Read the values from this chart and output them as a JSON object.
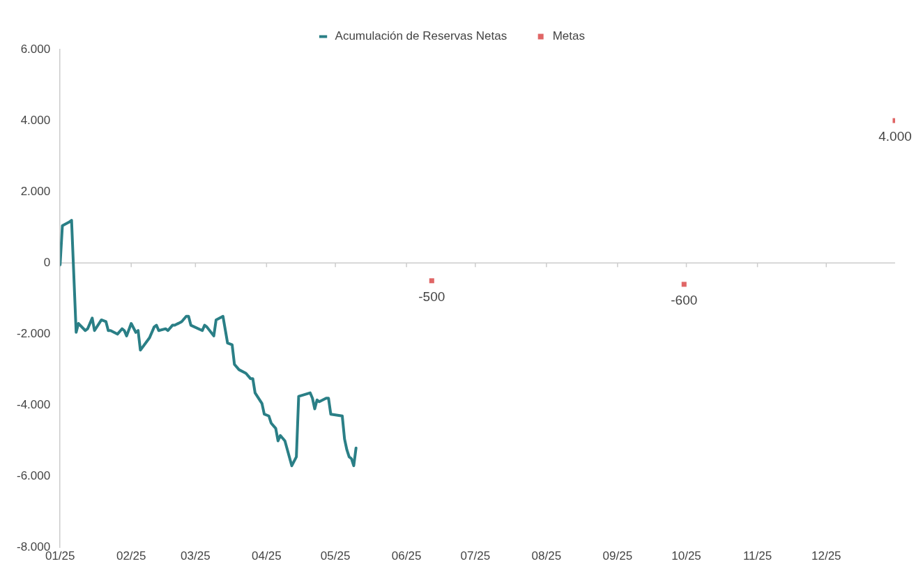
{
  "chart_data": {
    "type": "line",
    "legend": "top",
    "grid": false,
    "xlim": [
      "2025-01-01",
      "2025-12-31"
    ],
    "xticks": [
      {
        "value": "2025-01-01",
        "label": "01/25"
      },
      {
        "value": "2025-02-01",
        "label": "02/25"
      },
      {
        "value": "2025-03-01",
        "label": "03/25"
      },
      {
        "value": "2025-04-01",
        "label": "04/25"
      },
      {
        "value": "2025-05-01",
        "label": "05/25"
      },
      {
        "value": "2025-06-01",
        "label": "06/25"
      },
      {
        "value": "2025-07-01",
        "label": "07/25"
      },
      {
        "value": "2025-08-01",
        "label": "08/25"
      },
      {
        "value": "2025-09-01",
        "label": "09/25"
      },
      {
        "value": "2025-10-01",
        "label": "10/25"
      },
      {
        "value": "2025-11-01",
        "label": "11/25"
      },
      {
        "value": "2025-12-01",
        "label": "12/25"
      }
    ],
    "ylim": [
      -8000,
      6000
    ],
    "yticks": [
      {
        "value": -8000,
        "label": "-8.000"
      },
      {
        "value": -6000,
        "label": "-6.000"
      },
      {
        "value": -4000,
        "label": "-4.000"
      },
      {
        "value": -2000,
        "label": "-2.000"
      },
      {
        "value": 0,
        "label": "0"
      },
      {
        "value": 2000,
        "label": "2.000"
      },
      {
        "value": 4000,
        "label": "4.000"
      },
      {
        "value": 6000,
        "label": "6.000"
      }
    ],
    "ref_lines": [
      {
        "axis": "y",
        "value": 0,
        "color": "#cccccc"
      }
    ],
    "series": [
      {
        "name": "Acumulación de Reservas Netas",
        "color": "#2a7f86",
        "x": [
          "2025-01-01",
          "2025-01-02",
          "2025-01-05",
          "2025-01-06",
          "2025-01-08",
          "2025-01-09",
          "2025-01-12",
          "2025-01-13",
          "2025-01-15",
          "2025-01-16",
          "2025-01-19",
          "2025-01-21",
          "2025-01-22",
          "2025-01-23",
          "2025-01-26",
          "2025-01-28",
          "2025-01-29",
          "2025-01-30",
          "2025-02-01",
          "2025-02-03",
          "2025-02-04",
          "2025-02-05",
          "2025-02-09",
          "2025-02-11",
          "2025-02-12",
          "2025-02-13",
          "2025-02-16",
          "2025-02-17",
          "2025-02-19",
          "2025-02-20",
          "2025-02-23",
          "2025-02-25",
          "2025-02-26",
          "2025-02-27",
          "2025-03-04",
          "2025-03-05",
          "2025-03-06",
          "2025-03-09",
          "2025-03-10",
          "2025-03-13",
          "2025-03-15",
          "2025-03-17",
          "2025-03-18",
          "2025-03-20",
          "2025-03-23",
          "2025-03-25",
          "2025-03-26",
          "2025-03-27",
          "2025-03-30",
          "2025-03-31",
          "2025-04-02",
          "2025-04-03",
          "2025-04-05",
          "2025-04-06",
          "2025-04-07",
          "2025-04-09",
          "2025-04-12",
          "2025-04-14",
          "2025-04-15",
          "2025-04-20",
          "2025-04-21",
          "2025-04-22",
          "2025-04-23",
          "2025-04-24",
          "2025-04-27",
          "2025-04-28",
          "2025-04-29",
          "2025-05-04",
          "2025-05-05",
          "2025-05-06",
          "2025-05-07",
          "2025-05-08",
          "2025-05-09",
          "2025-05-10"
        ],
        "values": [
          -50,
          1050,
          1150,
          1200,
          -1950,
          -1700,
          -1900,
          -1850,
          -1550,
          -1900,
          -1600,
          -1650,
          -1900,
          -1900,
          -2000,
          -1850,
          -1900,
          -2050,
          -1700,
          -1950,
          -1900,
          -2450,
          -2100,
          -1800,
          -1750,
          -1900,
          -1850,
          -1900,
          -1750,
          -1750,
          -1650,
          -1500,
          -1500,
          -1750,
          -1900,
          -1750,
          -1800,
          -2050,
          -1600,
          -1500,
          -2250,
          -2300,
          -2850,
          -3000,
          -3100,
          -3250,
          -3250,
          -3650,
          -3950,
          -4250,
          -4300,
          -4500,
          -4650,
          -5000,
          -4850,
          -5000,
          -5700,
          -5450,
          -3750,
          -3650,
          -3800,
          -4100,
          -3850,
          -3900,
          -3800,
          -3800,
          -4250,
          -4300,
          -4950,
          -5250,
          -5450,
          -5500,
          -5700,
          -5200
        ]
      },
      {
        "name": "Metas",
        "type": "scatter",
        "color": "#e06666",
        "marker": "square",
        "x": [
          "2025-06-12",
          "2025-09-30",
          "2025-12-31"
        ],
        "values": [
          -500,
          -600,
          4000
        ],
        "value_labels": [
          "-500",
          "-600",
          "4.000"
        ]
      }
    ]
  }
}
